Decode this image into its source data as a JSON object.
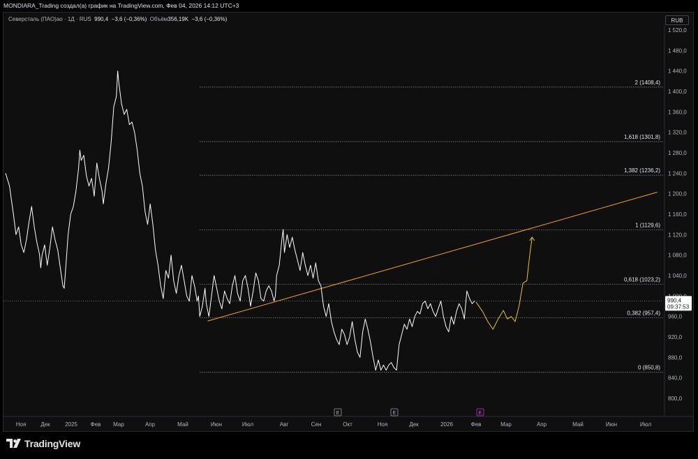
{
  "header": {
    "attribution": "MONDIARA_Trading создал(а) график на TradingView.com, Фев 04, 2026 14:12 UTC+3"
  },
  "legend": {
    "symbol": "Северсталь (ПАО)ао · 1Д · RUS",
    "price": "990,4",
    "change": "−3,6 (−0,36%)",
    "volume_label": "Объём",
    "volume_value": "356,19K",
    "volume_change": "−3,6 (−0,36%)"
  },
  "currency_button": "RUB",
  "price_tag": {
    "value": "990,4",
    "countdown": "09:37:53"
  },
  "event_markers": [
    "E",
    "E",
    "E"
  ],
  "brand": "TradingView",
  "colors": {
    "background": "#0f0f0f",
    "price_line": "#ffffff",
    "trendline": "#f7a21b",
    "projection": "#e8c41c",
    "event_marker": "#9c27b0"
  },
  "chart_data": {
    "type": "line",
    "ylim": [
      780,
      1530
    ],
    "y_ticks": [
      "1 520,0",
      "1 480,0",
      "1 440,0",
      "1 400,0",
      "1 360,0",
      "1 320,0",
      "1 280,0",
      "1 240,0",
      "1 200,0",
      "1 160,0",
      "1 120,0",
      "1 080,0",
      "1 040,0",
      "1 000,0",
      "960,0",
      "920,0",
      "880,0",
      "840,0",
      "800,0"
    ],
    "x_ticks": [
      "Ноя",
      "Дек",
      "2025",
      "Фев",
      "Мар",
      "Апр",
      "Май",
      "Июн",
      "Июл",
      "Авг",
      "Сен",
      "Окт",
      "Ноя",
      "Дек",
      "2026",
      "Фев",
      "Мар",
      "Апр",
      "Май",
      "Июн",
      "Июл"
    ],
    "fib_levels": [
      {
        "label": "0 (850,8)",
        "value": 850.8
      },
      {
        "label": "0,382 (957,4)",
        "value": 957.4
      },
      {
        "label": "0,618 (1023,2)",
        "value": 1023.2
      },
      {
        "label": "1 (1129,6)",
        "value": 1129.6
      },
      {
        "label": "1,382 (1236,2)",
        "value": 1236.2
      },
      {
        "label": "1,618 (1301,8)",
        "value": 1301.8
      },
      {
        "label": "2 (1408,4)",
        "value": 1408.4
      }
    ],
    "last_price": 990.4,
    "price_series": [
      [
        0,
        1240
      ],
      [
        3,
        1215
      ],
      [
        6,
        1160
      ],
      [
        8,
        1120
      ],
      [
        10,
        1135
      ],
      [
        12,
        1100
      ],
      [
        14,
        1085
      ],
      [
        16,
        1110
      ],
      [
        18,
        1145
      ],
      [
        20,
        1175
      ],
      [
        22,
        1135
      ],
      [
        24,
        1105
      ],
      [
        26,
        1082
      ],
      [
        27,
        1055
      ],
      [
        28,
        1080
      ],
      [
        30,
        1100
      ],
      [
        32,
        1060
      ],
      [
        34,
        1095
      ],
      [
        36,
        1135
      ],
      [
        38,
        1110
      ],
      [
        40,
        1090
      ],
      [
        42,
        1055
      ],
      [
        44,
        1020
      ],
      [
        45,
        1015
      ],
      [
        46,
        1050
      ],
      [
        48,
        1120
      ],
      [
        50,
        1160
      ],
      [
        52,
        1175
      ],
      [
        54,
        1205
      ],
      [
        56,
        1250
      ],
      [
        57,
        1285
      ],
      [
        58,
        1265
      ],
      [
        60,
        1275
      ],
      [
        62,
        1235
      ],
      [
        64,
        1215
      ],
      [
        66,
        1230
      ],
      [
        68,
        1195
      ],
      [
        70,
        1260
      ],
      [
        72,
        1230
      ],
      [
        74,
        1205
      ],
      [
        75,
        1180
      ],
      [
        77,
        1220
      ],
      [
        79,
        1250
      ],
      [
        81,
        1300
      ],
      [
        83,
        1370
      ],
      [
        85,
        1390
      ],
      [
        86,
        1440
      ],
      [
        87,
        1415
      ],
      [
        89,
        1375
      ],
      [
        91,
        1355
      ],
      [
        93,
        1365
      ],
      [
        95,
        1335
      ],
      [
        97,
        1340
      ],
      [
        99,
        1320
      ],
      [
        101,
        1285
      ],
      [
        103,
        1240
      ],
      [
        105,
        1215
      ],
      [
        107,
        1165
      ],
      [
        109,
        1140
      ],
      [
        111,
        1180
      ],
      [
        113,
        1140
      ],
      [
        115,
        1090
      ],
      [
        117,
        1060
      ],
      [
        119,
        1020
      ],
      [
        121,
        995
      ],
      [
        123,
        1050
      ],
      [
        125,
        1035
      ],
      [
        127,
        1080
      ],
      [
        129,
        1030
      ],
      [
        131,
        1005
      ],
      [
        133,
        1040
      ],
      [
        135,
        1060
      ],
      [
        137,
        1030
      ],
      [
        139,
        1000
      ],
      [
        141,
        990
      ],
      [
        143,
        1040
      ],
      [
        145,
        1020
      ],
      [
        147,
        990
      ],
      [
        148,
        1000
      ],
      [
        149,
        960
      ],
      [
        151,
        980
      ],
      [
        153,
        1015
      ],
      [
        154,
        985
      ],
      [
        156,
        960
      ],
      [
        158,
        1000
      ],
      [
        160,
        1040
      ],
      [
        162,
        1015
      ],
      [
        164,
        990
      ],
      [
        166,
        975
      ],
      [
        168,
        1010
      ],
      [
        170,
        995
      ],
      [
        172,
        985
      ],
      [
        174,
        1020
      ],
      [
        176,
        1040
      ],
      [
        178,
        1005
      ],
      [
        180,
        990
      ],
      [
        182,
        1030
      ],
      [
        184,
        1040
      ],
      [
        186,
        1015
      ],
      [
        188,
        980
      ],
      [
        190,
        1010
      ],
      [
        192,
        1045
      ],
      [
        194,
        1030
      ],
      [
        196,
        995
      ],
      [
        198,
        990
      ],
      [
        200,
        1010
      ],
      [
        202,
        1020
      ],
      [
        204,
        1010
      ],
      [
        206,
        990
      ],
      [
        207,
        1000
      ],
      [
        208,
        1040
      ],
      [
        210,
        1060
      ],
      [
        212,
        1110
      ],
      [
        213,
        1130
      ],
      [
        214,
        1085
      ],
      [
        216,
        1120
      ],
      [
        218,
        1095
      ],
      [
        220,
        1115
      ],
      [
        222,
        1090
      ],
      [
        224,
        1070
      ],
      [
        226,
        1050
      ],
      [
        228,
        1085
      ],
      [
        230,
        1060
      ],
      [
        232,
        1040
      ],
      [
        234,
        1060
      ],
      [
        236,
        1035
      ],
      [
        238,
        1065
      ],
      [
        240,
        1030
      ],
      [
        242,
        1020
      ],
      [
        244,
        980
      ],
      [
        246,
        960
      ],
      [
        248,
        985
      ],
      [
        250,
        950
      ],
      [
        252,
        930
      ],
      [
        254,
        915
      ],
      [
        256,
        905
      ],
      [
        258,
        935
      ],
      [
        260,
        925
      ],
      [
        262,
        905
      ],
      [
        264,
        920
      ],
      [
        266,
        950
      ],
      [
        268,
        915
      ],
      [
        270,
        890
      ],
      [
        272,
        880
      ],
      [
        274,
        930
      ],
      [
        276,
        955
      ],
      [
        278,
        935
      ],
      [
        280,
        910
      ],
      [
        282,
        880
      ],
      [
        284,
        855
      ],
      [
        286,
        875
      ],
      [
        288,
        855
      ],
      [
        290,
        865
      ],
      [
        292,
        855
      ],
      [
        294,
        865
      ],
      [
        296,
        870
      ],
      [
        298,
        860
      ],
      [
        300,
        855
      ],
      [
        302,
        905
      ],
      [
        304,
        925
      ],
      [
        306,
        945
      ],
      [
        308,
        935
      ],
      [
        310,
        955
      ],
      [
        312,
        940
      ],
      [
        314,
        960
      ],
      [
        316,
        970
      ],
      [
        318,
        965
      ],
      [
        320,
        985
      ],
      [
        322,
        990
      ],
      [
        324,
        975
      ],
      [
        326,
        985
      ],
      [
        328,
        970
      ],
      [
        330,
        960
      ],
      [
        332,
        975
      ],
      [
        334,
        990
      ],
      [
        336,
        960
      ],
      [
        338,
        940
      ],
      [
        340,
        930
      ],
      [
        342,
        960
      ],
      [
        344,
        945
      ],
      [
        346,
        970
      ],
      [
        348,
        985
      ],
      [
        350,
        975
      ],
      [
        352,
        955
      ],
      [
        354,
        1010
      ],
      [
        356,
        995
      ],
      [
        358,
        985
      ],
      [
        360,
        990.4
      ]
    ],
    "projection_series": [
      [
        361,
        988
      ],
      [
        366,
        970
      ],
      [
        370,
        950
      ],
      [
        374,
        935
      ],
      [
        378,
        955
      ],
      [
        382,
        972
      ],
      [
        385,
        955
      ],
      [
        388,
        960
      ],
      [
        391,
        950
      ],
      [
        394,
        980
      ],
      [
        397,
        1025
      ],
      [
        400,
        1030
      ],
      [
        402,
        1075
      ],
      [
        404,
        1115
      ]
    ],
    "trendline": {
      "start": [
        155,
        951
      ],
      "end": [
        500,
        1203
      ]
    }
  }
}
